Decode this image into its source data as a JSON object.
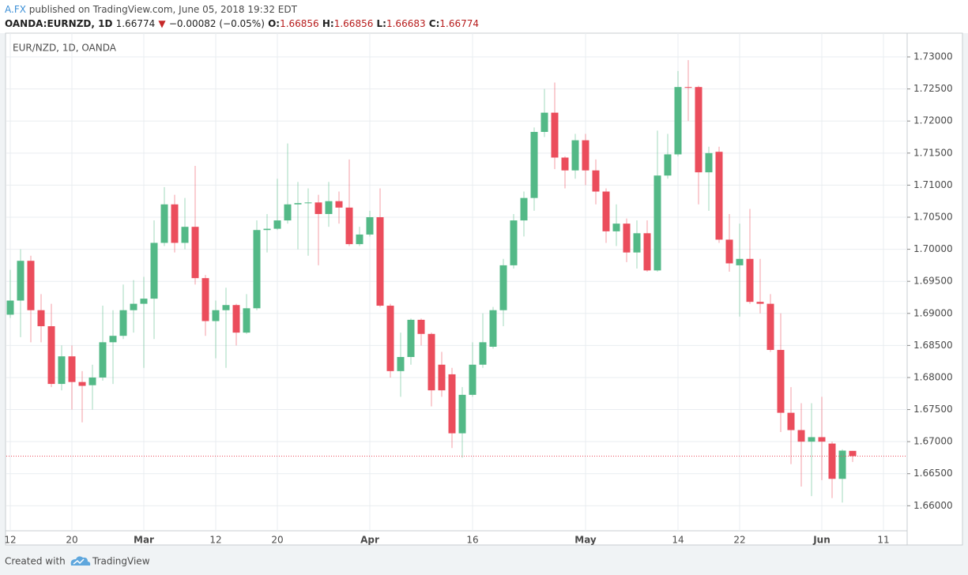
{
  "header": {
    "author": "A.FX",
    "published": "published on TradingView.com, June 05, 2018 19:32 EDT",
    "symbol": "OANDA:EURNZD, 1D",
    "change_arrow": "▼",
    "change": "−0.00082 (−0.05%)",
    "ohlc_labels": [
      "O:",
      "H:",
      "L:",
      "C:"
    ]
  },
  "footer": {
    "created": "Created with",
    "brand": "TradingView"
  },
  "chart_data": {
    "type": "candlestick",
    "title": "EUR/NZD, 1D, OANDA",
    "up_color": "#53b987",
    "down_color": "#eb4d5c",
    "grid": true,
    "price_line": true,
    "ylim": [
      1.6561,
      1.7337
    ],
    "yticks": [
      {
        "value": 1.66,
        "label": "1.66000"
      },
      {
        "value": 1.665,
        "label": "1.66500"
      },
      {
        "value": 1.67,
        "label": "1.67000"
      },
      {
        "value": 1.675,
        "label": "1.67500"
      },
      {
        "value": 1.68,
        "label": "1.68000"
      },
      {
        "value": 1.685,
        "label": "1.68500"
      },
      {
        "value": 1.69,
        "label": "1.69000"
      },
      {
        "value": 1.695,
        "label": "1.69500"
      },
      {
        "value": 1.7,
        "label": "1.70000"
      },
      {
        "value": 1.705,
        "label": "1.70500"
      },
      {
        "value": 1.71,
        "label": "1.71000"
      },
      {
        "value": 1.715,
        "label": "1.71500"
      },
      {
        "value": 1.72,
        "label": "1.72000"
      },
      {
        "value": 1.725,
        "label": "1.72500"
      },
      {
        "value": 1.73,
        "label": "1.73000"
      }
    ],
    "categories": [
      "12",
      null,
      null,
      null,
      null,
      null,
      "20",
      null,
      null,
      null,
      null,
      null,
      null,
      "Mar",
      null,
      null,
      null,
      null,
      null,
      null,
      "12",
      null,
      null,
      null,
      null,
      null,
      "20",
      null,
      null,
      null,
      null,
      null,
      null,
      null,
      null,
      "Apr",
      null,
      null,
      null,
      null,
      null,
      null,
      null,
      null,
      null,
      "16",
      null,
      null,
      null,
      null,
      null,
      null,
      null,
      null,
      null,
      null,
      "May",
      null,
      null,
      null,
      null,
      null,
      null,
      null,
      null,
      "14",
      null,
      null,
      null,
      null,
      null,
      "22",
      null,
      null,
      null,
      null,
      null,
      null,
      null,
      "Jun",
      null,
      null,
      null,
      null,
      null,
      "11"
    ],
    "open": [
      1.6898,
      1.692,
      1.6982,
      1.6905,
      1.688,
      1.679,
      1.6833,
      1.6793,
      1.6788,
      1.68,
      1.6855,
      1.6865,
      1.6905,
      1.6915,
      1.6923,
      1.701,
      1.707,
      1.701,
      1.7035,
      1.6955,
      1.6888,
      1.6905,
      1.6913,
      1.687,
      1.6908,
      1.703,
      1.7032,
      1.7045,
      1.707,
      1.7072,
      1.7073,
      1.7055,
      1.7075,
      1.7065,
      1.7008,
      1.7023,
      1.705,
      1.6912,
      1.681,
      1.6832,
      1.689,
      1.6868,
      1.682,
      1.6805,
      1.6713,
      1.6773,
      1.682,
      1.6848,
      1.6905,
      1.6975,
      1.7045,
      1.708,
      1.7183,
      1.7213,
      1.7143,
      1.7123,
      1.717,
      1.7123,
      1.709,
      1.7028,
      1.704,
      1.6995,
      1.7025,
      1.6967,
      1.7115,
      1.7148,
      1.7253,
      1.7253,
      1.712,
      1.7152,
      1.7015,
      1.6975,
      1.6985,
      1.6918,
      1.6915,
      1.6843,
      1.6745,
      1.6718,
      1.67,
      1.6707,
      1.6697,
      1.6642,
      1.66856,
      null,
      null,
      null
    ],
    "high": [
      1.6968,
      1.7,
      1.699,
      1.693,
      1.6915,
      1.685,
      1.685,
      1.681,
      1.682,
      1.6912,
      1.6905,
      1.6945,
      1.6952,
      1.6957,
      1.7045,
      1.7097,
      1.7085,
      1.708,
      1.713,
      1.696,
      1.692,
      1.694,
      1.6915,
      1.693,
      1.7045,
      1.7055,
      1.711,
      1.7165,
      1.7105,
      1.7095,
      1.7085,
      1.7105,
      1.709,
      1.714,
      1.7035,
      1.706,
      1.7095,
      1.6915,
      1.687,
      1.6892,
      1.6892,
      1.687,
      1.684,
      1.6815,
      1.6785,
      1.6855,
      1.69,
      1.691,
      1.6985,
      1.7055,
      1.709,
      1.719,
      1.725,
      1.726,
      1.7145,
      1.718,
      1.718,
      1.714,
      1.7095,
      1.707,
      1.7048,
      1.7045,
      1.7045,
      1.7185,
      1.718,
      1.7278,
      1.7295,
      1.7255,
      1.716,
      1.716,
      1.7055,
      1.704,
      1.7063,
      1.6985,
      1.693,
      1.69,
      1.6785,
      1.676,
      1.676,
      1.677,
      1.67,
      1.6688,
      1.66856,
      null,
      null,
      null
    ],
    "low": [
      1.6893,
      1.6863,
      1.6855,
      1.6855,
      1.6785,
      1.678,
      1.675,
      1.673,
      1.675,
      1.6795,
      1.679,
      1.686,
      1.687,
      1.6815,
      1.686,
      1.7005,
      1.6995,
      1.7,
      1.6945,
      1.6865,
      1.683,
      1.6815,
      1.685,
      1.6868,
      1.6905,
      1.6995,
      1.703,
      1.704,
      1.7,
      1.699,
      1.6975,
      1.7035,
      1.704,
      1.7005,
      1.7005,
      1.702,
      1.691,
      1.68,
      1.677,
      1.682,
      1.685,
      1.6755,
      1.677,
      1.669,
      1.6675,
      1.677,
      1.6815,
      1.6845,
      1.688,
      1.697,
      1.702,
      1.706,
      1.7175,
      1.7125,
      1.7095,
      1.711,
      1.71,
      1.707,
      1.701,
      1.7005,
      1.698,
      1.697,
      1.6965,
      1.6965,
      1.711,
      1.7145,
      1.72,
      1.707,
      1.706,
      1.701,
      1.6965,
      1.6895,
      1.6915,
      1.69,
      1.684,
      1.6715,
      1.6665,
      1.663,
      1.6615,
      1.664,
      1.6612,
      1.6605,
      1.66683,
      null,
      null,
      null
    ],
    "close": [
      1.692,
      1.6982,
      1.6905,
      1.688,
      1.679,
      1.6833,
      1.6793,
      1.6787,
      1.68,
      1.6855,
      1.6865,
      1.6905,
      1.6915,
      1.6923,
      1.701,
      1.707,
      1.701,
      1.7035,
      1.6955,
      1.6888,
      1.6905,
      1.6913,
      1.687,
      1.6908,
      1.703,
      1.7032,
      1.7045,
      1.707,
      1.7072,
      1.7073,
      1.7055,
      1.7075,
      1.7065,
      1.7008,
      1.7023,
      1.705,
      1.6912,
      1.681,
      1.6832,
      1.689,
      1.6868,
      1.678,
      1.678,
      1.6713,
      1.6773,
      1.682,
      1.6855,
      1.6905,
      1.6975,
      1.7045,
      1.708,
      1.7183,
      1.7213,
      1.7143,
      1.7123,
      1.717,
      1.7123,
      1.709,
      1.7028,
      1.704,
      1.6995,
      1.7025,
      1.6967,
      1.7115,
      1.7148,
      1.7253,
      1.7252,
      1.712,
      1.715,
      1.7015,
      1.6978,
      1.6985,
      1.6918,
      1.6915,
      1.6843,
      1.6745,
      1.6718,
      1.67,
      1.6707,
      1.67,
      1.6642,
      1.6686,
      1.66774,
      null,
      null,
      null
    ]
  }
}
